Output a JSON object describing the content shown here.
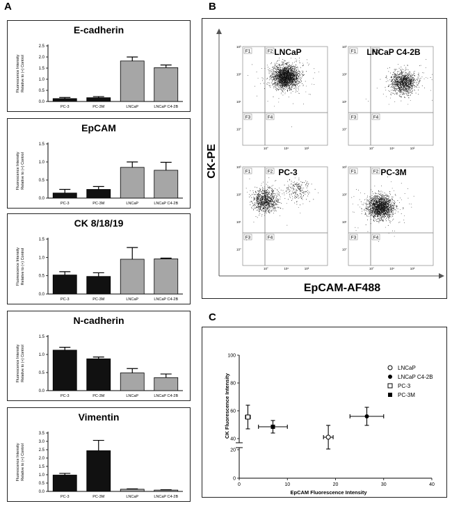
{
  "panel_labels": {
    "a": "A",
    "b": "B",
    "c": "C"
  },
  "colors": {
    "black_bar": "#111111",
    "gray_bar": "#a6a6a6",
    "frame": "#222222"
  },
  "axis_label_line1": "Fluorescence Intensity",
  "axis_label_line2": "Relative to (+) Control",
  "chart_data": [
    {
      "type": "bar",
      "title": "E-cadherin",
      "categories": [
        "PC-3",
        "PC-3M",
        "LNCaP",
        "LNCaP C4-2B"
      ],
      "values": [
        0.13,
        0.17,
        1.82,
        1.52
      ],
      "errors": [
        0.05,
        0.05,
        0.18,
        0.12
      ],
      "bar_colors": [
        "black",
        "black",
        "gray",
        "gray"
      ],
      "ylim": [
        0,
        2.5
      ],
      "yticks": [
        "0.0",
        "0.5",
        "1.0",
        "1.5",
        "2.0",
        "2.5"
      ],
      "ylabel": "Fluorescence Intensity Relative to (+) Control"
    },
    {
      "type": "bar",
      "title": "EpCAM",
      "categories": [
        "PC-3",
        "PC-3M",
        "LNCaP",
        "LNCaP C4-2B"
      ],
      "values": [
        0.14,
        0.24,
        0.85,
        0.77
      ],
      "errors": [
        0.1,
        0.08,
        0.15,
        0.22
      ],
      "bar_colors": [
        "black",
        "black",
        "gray",
        "gray"
      ],
      "ylim": [
        0,
        1.5
      ],
      "yticks": [
        "0.0",
        "0.5",
        "1.0",
        "1.5"
      ],
      "ylabel": "Fluorescence Intensity Relative to (+) Control"
    },
    {
      "type": "bar",
      "title": "CK 8/18/19",
      "categories": [
        "PC-3",
        "PC-3M",
        "LNCaP",
        "LNCaP C4-2B"
      ],
      "values": [
        0.52,
        0.48,
        0.95,
        0.96
      ],
      "errors": [
        0.09,
        0.1,
        0.32,
        0.02
      ],
      "bar_colors": [
        "black",
        "black",
        "gray",
        "gray"
      ],
      "ylim": [
        0,
        1.5
      ],
      "yticks": [
        "0.0",
        "0.5",
        "1.0",
        "1.5"
      ],
      "ylabel": "Fluorescence Intensity Relative to (+) Control"
    },
    {
      "type": "bar",
      "title": "N-cadherin",
      "categories": [
        "PC-3",
        "PC-3M",
        "LNCaP",
        "LNCaP C4-2B"
      ],
      "values": [
        1.12,
        0.88,
        0.49,
        0.36
      ],
      "errors": [
        0.08,
        0.05,
        0.12,
        0.1
      ],
      "bar_colors": [
        "black",
        "black",
        "gray",
        "gray"
      ],
      "ylim": [
        0,
        1.5
      ],
      "yticks": [
        "0.0",
        "0.5",
        "1.0",
        "1.5"
      ],
      "ylabel": "Fluorescence Intensity Relative to (+) Control"
    },
    {
      "type": "bar",
      "title": "Vimentin",
      "categories": [
        "PC-3",
        "PC-3M",
        "LNCaP",
        "LNCaP C4-2B"
      ],
      "values": [
        0.98,
        2.44,
        0.13,
        0.08
      ],
      "errors": [
        0.1,
        0.62,
        0.02,
        0.02
      ],
      "bar_colors": [
        "black",
        "black",
        "gray",
        "gray"
      ],
      "ylim": [
        0,
        3.5
      ],
      "yticks": [
        "0.0",
        "0.5",
        "1.0",
        "1.5",
        "2.0",
        "2.5",
        "3.0",
        "3.5"
      ],
      "ylabel": "Fluorescence Intensity Relative to (+) Control"
    },
    {
      "type": "flow_cytometry",
      "xlabel": "EpCAM-AF488",
      "ylabel": "CK-PE",
      "quadrant_labels": [
        "F1",
        "F2",
        "F3",
        "F4"
      ],
      "axis_tick_labels": [
        "10°",
        "10¹",
        "10²",
        "10³"
      ],
      "plots": [
        {
          "title": "LNCaP",
          "clusters": [
            {
              "x": 10,
              "y": 80,
              "n": 2200
            }
          ]
        },
        {
          "title": "LNCaP C4-2B",
          "clusters": [
            {
              "x": 40,
              "y": 50,
              "n": 1100
            }
          ]
        },
        {
          "title": "PC-3",
          "clusters": [
            {
              "x": 1,
              "y": 60,
              "n": 900
            },
            {
              "x": 40,
              "y": 150,
              "n": 200
            }
          ]
        },
        {
          "title": "PC-3M",
          "clusters": [
            {
              "x": 3,
              "y": 35,
              "n": 1700
            }
          ]
        }
      ]
    },
    {
      "type": "scatter",
      "xlabel": "EpCAM Fluorescence Intensity",
      "ylabel": "CK Fluorescence Intensity",
      "xlim": [
        0,
        40
      ],
      "xticks": [
        "0",
        "10",
        "20",
        "30",
        "40"
      ],
      "yticks_low": [
        "0",
        "20"
      ],
      "yticks_high": [
        "40",
        "60",
        "80",
        "100"
      ],
      "series": [
        {
          "name": "LNCaP",
          "marker": "open-circle",
          "x": 18.5,
          "y": 41,
          "xerr": 1,
          "yerr": 8.5
        },
        {
          "name": "LNCaP C4-2B",
          "marker": "filled-circle",
          "x": 26.5,
          "y": 56,
          "xerr": 3.5,
          "yerr": 6.5
        },
        {
          "name": "PC-3",
          "marker": "open-square",
          "x": 1.8,
          "y": 55.5,
          "xerr": 0.5,
          "yerr": 8.5
        },
        {
          "name": "PC-3M",
          "marker": "filled-square",
          "x": 7,
          "y": 48.5,
          "xerr": 3,
          "yerr": 4.5
        }
      ]
    }
  ]
}
